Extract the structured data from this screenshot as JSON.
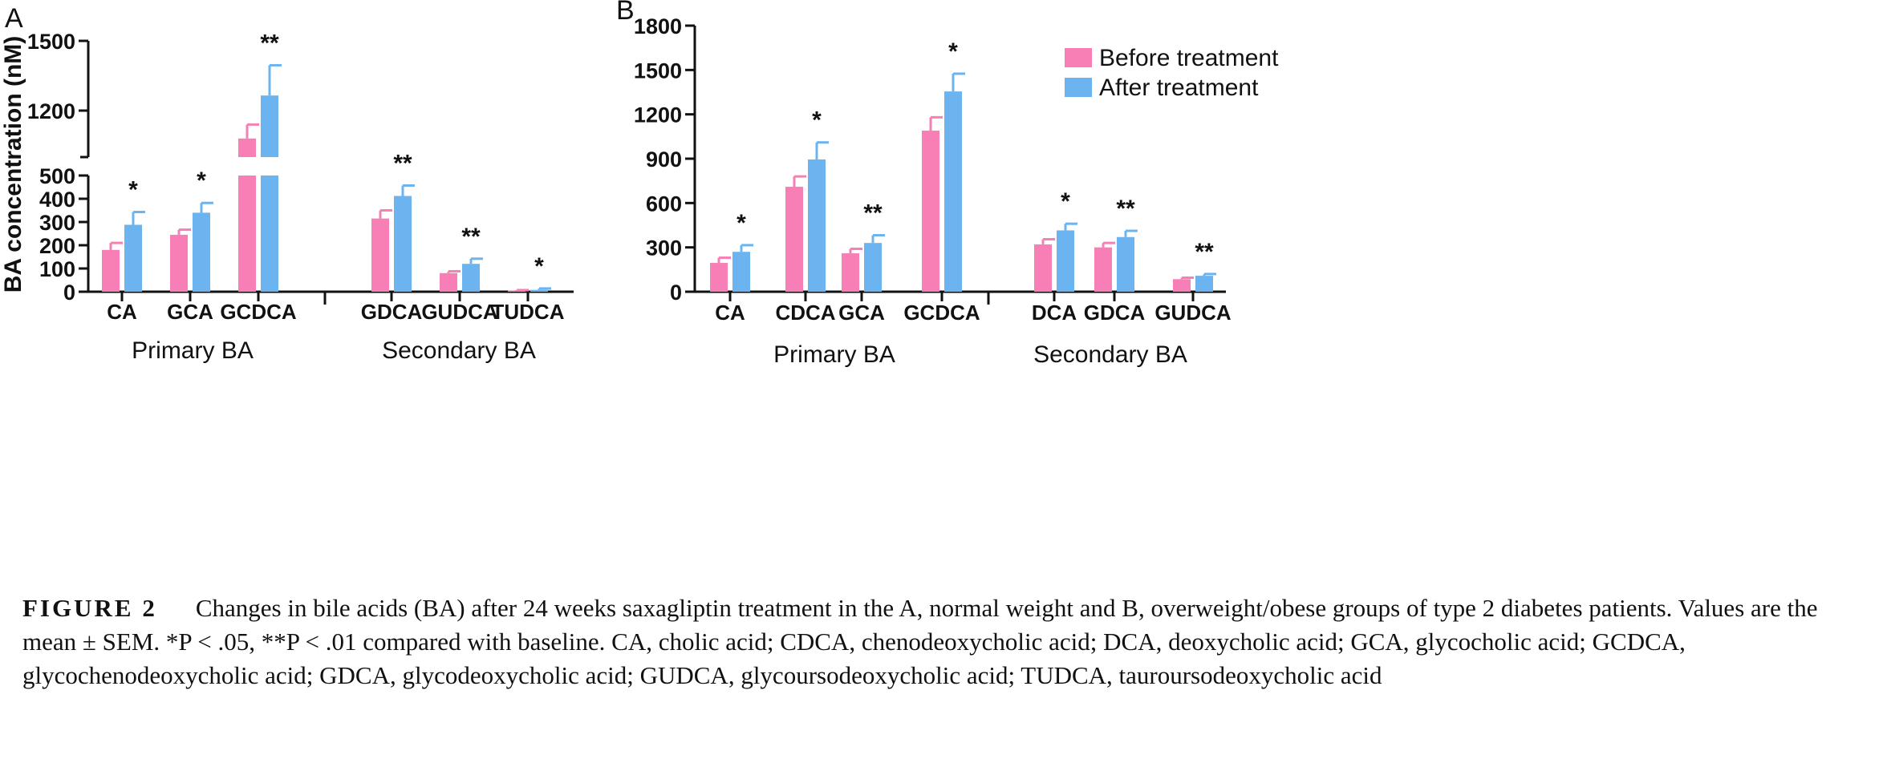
{
  "colors": {
    "before": "#f77fb5",
    "after": "#6cb4f0",
    "axis": "#111111"
  },
  "legend": {
    "before_label": "Before treatment",
    "after_label": "After treatment"
  },
  "chart_data": [
    {
      "type": "bar",
      "panel": "A",
      "ylabel": "BA concentration (nM)",
      "y_lower_range": [
        0,
        500
      ],
      "y_lower_ticks": [
        0,
        100,
        200,
        300,
        400,
        500
      ],
      "y_upper_range": [
        1000,
        1500
      ],
      "y_upper_ticks": [
        1200,
        1500
      ],
      "groups": [
        {
          "label": "Primary BA",
          "categories": [
            "CA",
            "GCA",
            "GCDCA"
          ]
        },
        {
          "label": "Secondary BA",
          "categories": [
            "GDCA",
            "GUDCA",
            "TUDCA"
          ]
        }
      ],
      "categories": [
        "CA",
        "GCA",
        "GCDCA",
        "GDCA",
        "GUDCA",
        "TUDCA"
      ],
      "series": [
        {
          "name": "Before treatment",
          "values": [
            180,
            245,
            1080,
            315,
            80,
            5
          ],
          "sem": [
            30,
            22,
            60,
            35,
            8,
            2
          ]
        },
        {
          "name": "After treatment",
          "values": [
            288,
            340,
            1265,
            412,
            120,
            8
          ],
          "sem": [
            55,
            42,
            130,
            45,
            22,
            6
          ]
        }
      ],
      "significance": [
        "*",
        "*",
        "**",
        "**",
        "**",
        "*"
      ]
    },
    {
      "type": "bar",
      "panel": "B",
      "ylabel": "",
      "ylim": [
        0,
        1800
      ],
      "yticks": [
        0,
        300,
        600,
        900,
        1200,
        1500,
        1800
      ],
      "legend_position": "top-right",
      "groups": [
        {
          "label": "Primary BA",
          "categories": [
            "CA",
            "CDCA",
            "GCA",
            "GCDCA"
          ]
        },
        {
          "label": "Secondary BA",
          "categories": [
            "DCA",
            "GDCA",
            "GUDCA"
          ]
        }
      ],
      "categories": [
        "CA",
        "CDCA",
        "GCA",
        "GCDCA",
        "DCA",
        "GDCA",
        "GUDCA"
      ],
      "series": [
        {
          "name": "Before treatment",
          "values": [
            195,
            710,
            260,
            1090,
            320,
            300,
            85
          ],
          "sem": [
            35,
            70,
            30,
            90,
            35,
            30,
            10
          ]
        },
        {
          "name": "After treatment",
          "values": [
            270,
            895,
            330,
            1355,
            415,
            370,
            108
          ],
          "sem": [
            45,
            115,
            52,
            120,
            45,
            42,
            12
          ]
        }
      ],
      "significance": [
        "*",
        "*",
        "**",
        "*",
        "*",
        "**",
        "**"
      ]
    }
  ],
  "caption": {
    "label": "FIGURE 2",
    "text": "Changes in bile acids (BA) after 24 weeks saxagliptin treatment in the A, normal weight and B, overweight/obese groups of type 2 diabetes patients. Values are the mean ± SEM. *P < .05, **P < .01 compared with baseline. CA, cholic acid; CDCA, chenodeoxycholic acid; DCA, deoxycholic acid; GCA, glycocholic acid; GCDCA, glycochenodeoxycholic acid; GDCA, glycodeoxycholic acid; GUDCA, glycoursodeoxycholic acid; TUDCA, tauroursodeoxycholic acid"
  }
}
